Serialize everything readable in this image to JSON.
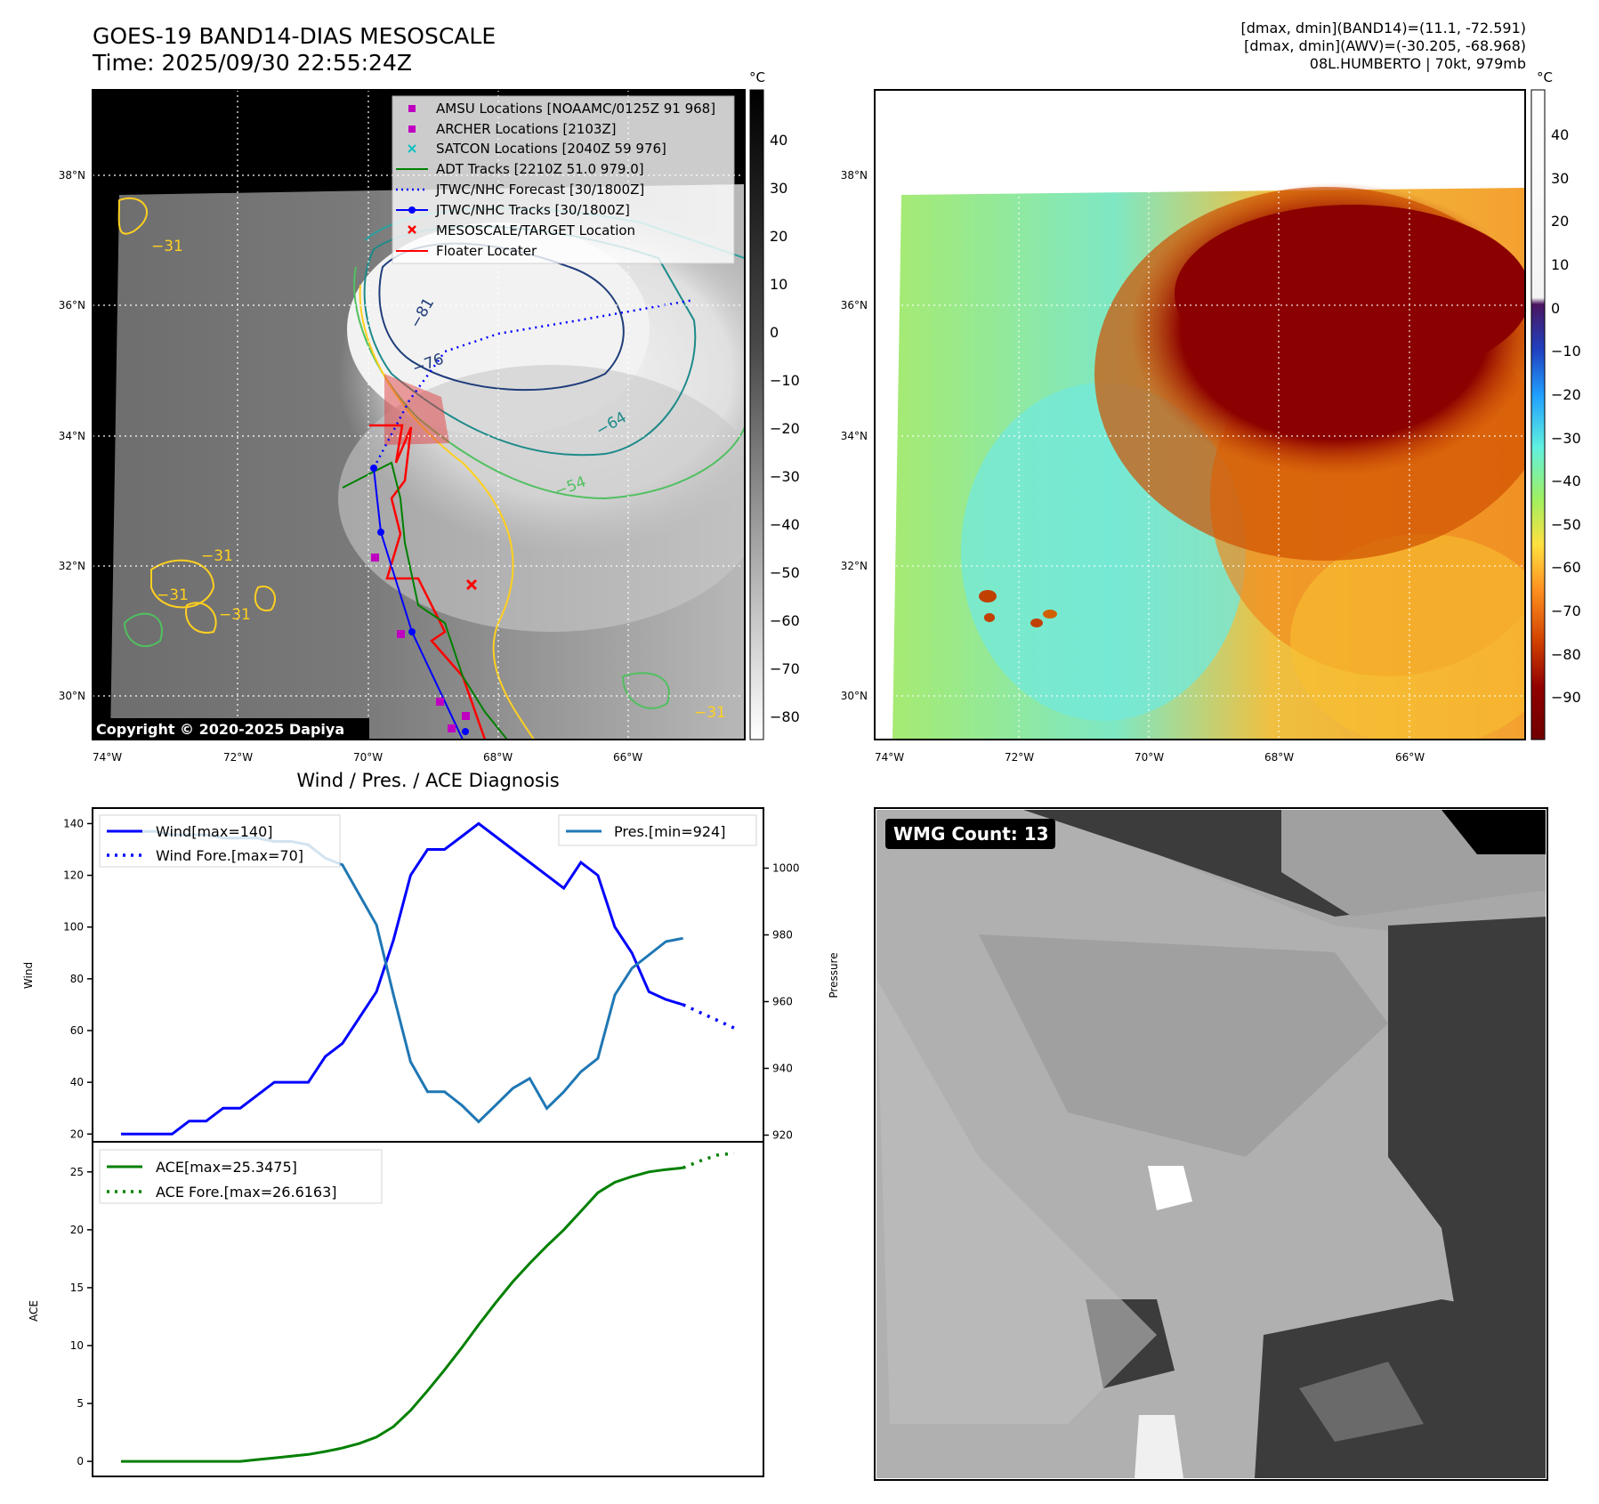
{
  "header": {
    "title": "GOES-19 BAND14-DIAS MESOSCALE",
    "time": "Time: 2025/09/30 22:55:24Z",
    "stat_band14": "[dmax, dmin](BAND14)=(11.1, -72.591)",
    "stat_awv": "[dmax, dmin](AWV)=(-30.205, -68.968)",
    "storm": "08L.HUMBERTO | 70kt, 979mb"
  },
  "map_axes": {
    "lon_ticks": [
      "74°W",
      "72°W",
      "70°W",
      "68°W",
      "66°W"
    ],
    "lat_ticks": [
      "38°N",
      "36°N",
      "34°N",
      "32°N",
      "30°N"
    ]
  },
  "colorbar_gray": {
    "unit": "°C",
    "ticks": [
      "40",
      "30",
      "20",
      "10",
      "0",
      "−10",
      "−20",
      "−30",
      "−40",
      "−50",
      "−60",
      "−70",
      "−80"
    ]
  },
  "colorbar_awv": {
    "unit": "°C",
    "ticks": [
      "40",
      "30",
      "20",
      "10",
      "0",
      "−10",
      "−20",
      "−30",
      "−40",
      "−50",
      "−60",
      "−70",
      "−80",
      "−90"
    ]
  },
  "map_legend": [
    {
      "label": "AMSU Locations [NOAAMC/0125Z 91 968]",
      "color": "#c000c0",
      "marker": "square"
    },
    {
      "label": "ARCHER Locations [2103Z]",
      "color": "#c000c0",
      "marker": "square"
    },
    {
      "label": "SATCON Locations [2040Z 59 976]",
      "color": "#10c0c0",
      "marker": "x"
    },
    {
      "label": "ADT Tracks [2210Z 51.0 979.0]",
      "color": "#008000",
      "marker": "line"
    },
    {
      "label": "JTWC/NHC Forecast [30/1800Z]",
      "color": "#0000ff",
      "marker": "dotted"
    },
    {
      "label": "JTWC/NHC Tracks [30/1800Z]",
      "color": "#0000ff",
      "marker": "line-dot"
    },
    {
      "label": "MESOSCALE/TARGET Location",
      "color": "#ff0000",
      "marker": "x"
    },
    {
      "label": "Floater Locater",
      "color": "#ff0000",
      "marker": "line"
    }
  ],
  "contour_labels": [
    "−31",
    "−31",
    "−31",
    "−31",
    "−81",
    "−76",
    "−64",
    "−54",
    "−31"
  ],
  "copyright": "Copyright © 2020-2025 Dapiya",
  "wmg_label": "WMG Count: 13",
  "chart_data": [
    {
      "type": "line",
      "title": "Wind / Pres. / ACE Diagnosis",
      "ylabel": "Wind",
      "y2label": "Pressure",
      "ylim": [
        17,
        146
      ],
      "y2lim": [
        918,
        1018
      ],
      "yticks": [
        20,
        40,
        60,
        80,
        100,
        120,
        140
      ],
      "y2ticks": [
        920,
        940,
        960,
        980,
        1000
      ],
      "x": [
        0,
        1,
        2,
        3,
        4,
        5,
        6,
        7,
        8,
        9,
        10,
        11,
        12,
        13,
        14,
        15,
        16,
        17,
        18,
        19,
        20,
        21,
        22,
        23,
        24,
        25,
        26,
        27,
        28,
        29,
        30,
        31,
        32,
        33,
        34,
        35,
        36
      ],
      "series": [
        {
          "name": "Wind[max=140]",
          "axis": "left",
          "color": "#0000ff",
          "style": "solid",
          "x": [
            0,
            1,
            2,
            3,
            4,
            5,
            6,
            7,
            8,
            9,
            10,
            11,
            12,
            13,
            14,
            15,
            16,
            17,
            18,
            19,
            20,
            21,
            22,
            23,
            24,
            25,
            26,
            27,
            28,
            29,
            30,
            31,
            32,
            33
          ],
          "values": [
            20,
            20,
            20,
            20,
            25,
            25,
            30,
            30,
            35,
            40,
            40,
            40,
            50,
            55,
            65,
            75,
            95,
            120,
            130,
            130,
            135,
            140,
            135,
            130,
            125,
            120,
            115,
            125,
            120,
            100,
            90,
            75,
            72,
            70
          ]
        },
        {
          "name": "Wind Fore.[max=70]",
          "axis": "left",
          "color": "#0000ff",
          "style": "dotted",
          "x": [
            33,
            34,
            35,
            36
          ],
          "values": [
            70,
            67,
            64,
            61
          ]
        },
        {
          "name": "Pres.[min=924]",
          "axis": "right",
          "color": "#1f77b4",
          "style": "solid",
          "x": [
            0,
            1,
            2,
            3,
            4,
            5,
            6,
            7,
            8,
            9,
            10,
            11,
            12,
            13,
            14,
            15,
            16,
            17,
            18,
            19,
            20,
            21,
            22,
            23,
            24,
            25,
            26,
            27,
            28,
            29,
            30,
            31,
            32,
            33
          ],
          "values": [
            1011,
            1011,
            1011,
            1010,
            1010,
            1010,
            1009,
            1009,
            1009,
            1008,
            1008,
            1007,
            1003,
            1001,
            992,
            983,
            962,
            942,
            933,
            933,
            929,
            924,
            929,
            934,
            937,
            928,
            933,
            939,
            943,
            962,
            970,
            974,
            978,
            979
          ]
        }
      ]
    },
    {
      "type": "line",
      "ylabel": "ACE",
      "ylim": [
        -1.3,
        27.6
      ],
      "yticks": [
        0,
        5,
        10,
        15,
        20,
        25
      ],
      "series": [
        {
          "name": "ACE[max=25.3475]",
          "color": "#008000",
          "style": "solid",
          "x": [
            0,
            1,
            2,
            3,
            4,
            5,
            6,
            7,
            8,
            9,
            10,
            11,
            12,
            13,
            14,
            15,
            16,
            17,
            18,
            19,
            20,
            21,
            22,
            23,
            24,
            25,
            26,
            27,
            28,
            29,
            30,
            31,
            32,
            33
          ],
          "values": [
            0,
            0,
            0,
            0,
            0,
            0,
            0,
            0,
            0.15,
            0.3,
            0.45,
            0.6,
            0.85,
            1.15,
            1.55,
            2.1,
            3.0,
            4.4,
            6.1,
            7.9,
            9.8,
            11.8,
            13.7,
            15.5,
            17.1,
            18.6,
            20.0,
            21.6,
            23.2,
            24.1,
            24.6,
            25.0,
            25.2,
            25.3475
          ]
        },
        {
          "name": "ACE Fore.[max=26.6163]",
          "color": "#008000",
          "style": "dotted",
          "x": [
            33,
            34,
            35,
            36
          ],
          "values": [
            25.3475,
            25.95,
            26.45,
            26.6163
          ]
        }
      ]
    }
  ]
}
